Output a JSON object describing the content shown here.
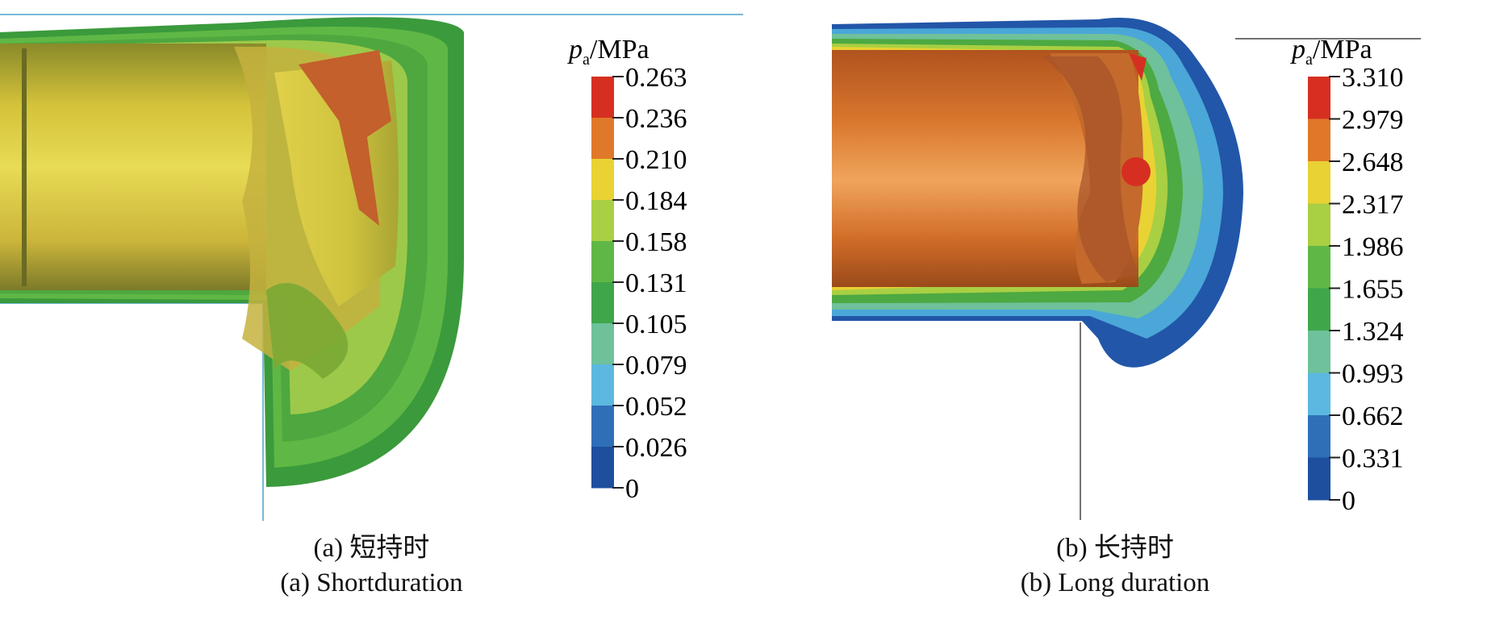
{
  "panels": [
    {
      "id": "a",
      "unit_symbol": "p",
      "unit_subscript": "a",
      "unit_text": "/MPa",
      "ticks": [
        "0.263",
        "0.236",
        "0.210",
        "0.184",
        "0.158",
        "0.131",
        "0.105",
        "0.079",
        "0.052",
        "0.026",
        "0"
      ],
      "colors": [
        "#d62f22",
        "#e0782a",
        "#e9d233",
        "#a9cf43",
        "#5fb846",
        "#3fa64a",
        "#6ec19a",
        "#5cb8e0",
        "#2f6fb8",
        "#1e4f9e"
      ],
      "caption_cn": "(a) 短持时",
      "caption_en": "(a) Shortduration"
    },
    {
      "id": "b",
      "unit_symbol": "p",
      "unit_subscript": "a",
      "unit_text": "/MPa",
      "ticks": [
        "3.310",
        "2.979",
        "2.648",
        "2.317",
        "1.986",
        "1.655",
        "1.324",
        "0.993",
        "0.662",
        "0.331",
        "0"
      ],
      "colors": [
        "#d62f22",
        "#e0782a",
        "#e9d233",
        "#a9cf43",
        "#5fb846",
        "#3fa64a",
        "#6ec19a",
        "#5cb8e0",
        "#2f6fb8",
        "#1e4f9e"
      ],
      "caption_cn": "(b) 长持时",
      "caption_en": "(b) Long duration"
    }
  ]
}
